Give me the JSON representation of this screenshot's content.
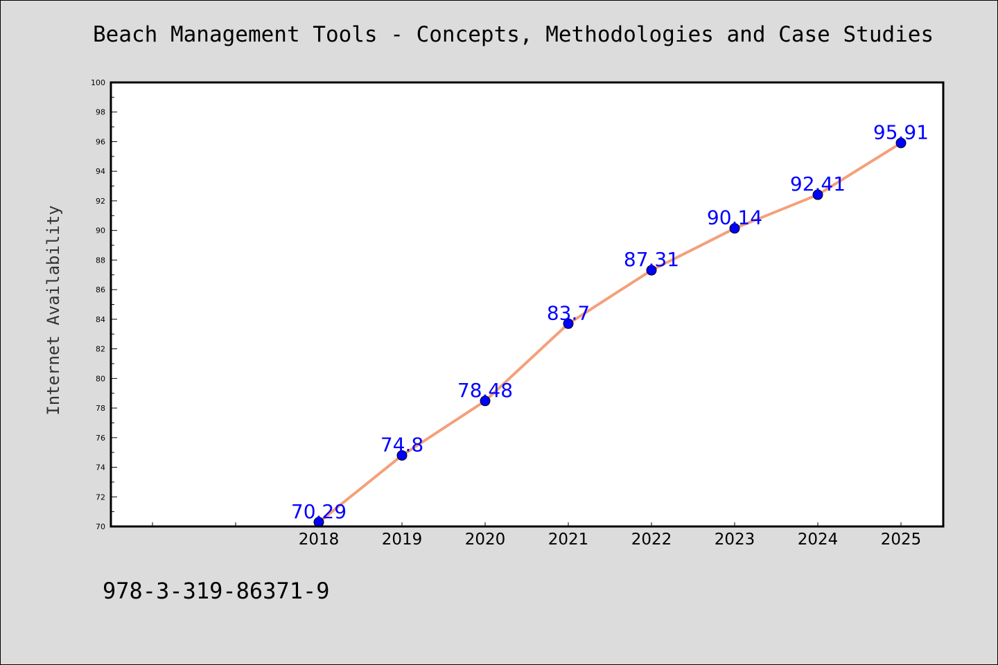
{
  "chart_data": {
    "type": "line",
    "title": "Beach Management Tools - Concepts, Methodologies and Case Studies",
    "xlabel": "",
    "ylabel": "Internet Availability",
    "categories": [
      "2018",
      "2019",
      "2020",
      "2021",
      "2022",
      "2023",
      "2024",
      "2025"
    ],
    "series": [
      {
        "values": [
          70.29,
          74.8,
          78.48,
          83.7,
          87.31,
          90.14,
          92.41,
          95.91
        ]
      }
    ],
    "data_labels": [
      "70.29",
      "74.8",
      "78.48",
      "83.7",
      "87.31",
      "90.14",
      "92.41",
      "95.91"
    ],
    "ylim": [
      70,
      100
    ],
    "yticks": [
      "70",
      "72",
      "74",
      "76",
      "78",
      "80",
      "82",
      "84",
      "86",
      "88",
      "90",
      "92",
      "94",
      "96",
      "98",
      "100"
    ],
    "grid": false,
    "legend": "none",
    "colors": {
      "line": "#f4a07a",
      "marker": "#0000ff",
      "data_label": "#0000ff",
      "plot_background": "#ffffff",
      "figure_background": "#dcdcdc"
    }
  },
  "footer": {
    "isbn": "978-3-319-86371-9"
  }
}
